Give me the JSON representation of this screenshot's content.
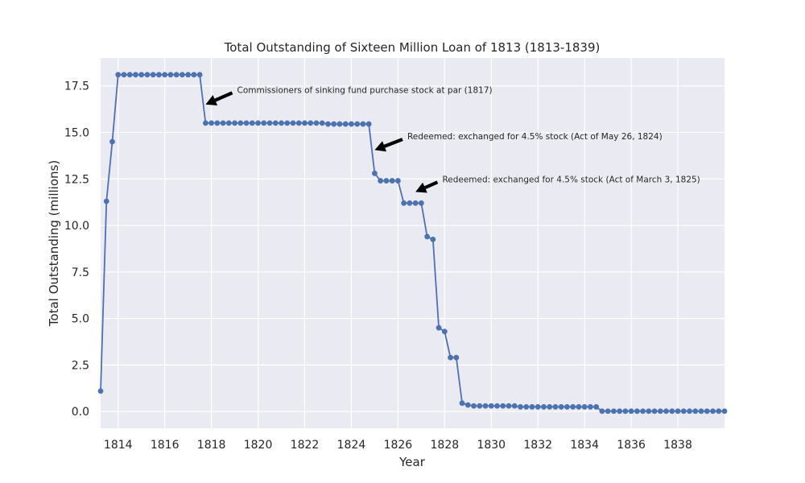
{
  "chart_data": {
    "type": "line",
    "title": "Total Outstanding of Sixteen Million Loan of 1813 (1813-1839)",
    "xlabel": "Year",
    "ylabel": "Total Outstanding (millions)",
    "xlim": [
      1813.25,
      1840.0
    ],
    "ylim": [
      -0.9,
      19.0
    ],
    "x_ticks": [
      1814,
      1816,
      1818,
      1820,
      1822,
      1824,
      1826,
      1828,
      1830,
      1832,
      1834,
      1836,
      1838
    ],
    "y_ticks": [
      0.0,
      2.5,
      5.0,
      7.5,
      10.0,
      12.5,
      15.0,
      17.5
    ],
    "grid": true,
    "colors": {
      "line": "#4c72b0",
      "background": "#eaeaf2",
      "grid": "#ffffff",
      "arrow": "#000000"
    },
    "series": [
      {
        "values": [
          [
            1813.25,
            1.1
          ],
          [
            1813.5,
            11.3
          ],
          [
            1813.75,
            14.5
          ],
          [
            1814.0,
            18.1
          ],
          [
            1814.25,
            18.1
          ],
          [
            1814.5,
            18.1
          ],
          [
            1814.75,
            18.1
          ],
          [
            1815.0,
            18.1
          ],
          [
            1815.25,
            18.1
          ],
          [
            1815.5,
            18.1
          ],
          [
            1815.75,
            18.1
          ],
          [
            1816.0,
            18.1
          ],
          [
            1816.25,
            18.1
          ],
          [
            1816.5,
            18.1
          ],
          [
            1816.75,
            18.1
          ],
          [
            1817.0,
            18.1
          ],
          [
            1817.25,
            18.1
          ],
          [
            1817.5,
            18.1
          ],
          [
            1817.75,
            15.5
          ],
          [
            1818.0,
            15.5
          ],
          [
            1818.25,
            15.5
          ],
          [
            1818.5,
            15.5
          ],
          [
            1818.75,
            15.5
          ],
          [
            1819.0,
            15.5
          ],
          [
            1819.25,
            15.5
          ],
          [
            1819.5,
            15.5
          ],
          [
            1819.75,
            15.5
          ],
          [
            1820.0,
            15.5
          ],
          [
            1820.25,
            15.5
          ],
          [
            1820.5,
            15.5
          ],
          [
            1820.75,
            15.5
          ],
          [
            1821.0,
            15.5
          ],
          [
            1821.25,
            15.5
          ],
          [
            1821.5,
            15.5
          ],
          [
            1821.75,
            15.5
          ],
          [
            1822.0,
            15.5
          ],
          [
            1822.25,
            15.5
          ],
          [
            1822.5,
            15.5
          ],
          [
            1822.75,
            15.5
          ],
          [
            1823.0,
            15.45
          ],
          [
            1823.25,
            15.45
          ],
          [
            1823.5,
            15.45
          ],
          [
            1823.75,
            15.45
          ],
          [
            1824.0,
            15.45
          ],
          [
            1824.25,
            15.45
          ],
          [
            1824.5,
            15.45
          ],
          [
            1824.75,
            15.45
          ],
          [
            1825.0,
            12.8
          ],
          [
            1825.25,
            12.4
          ],
          [
            1825.5,
            12.4
          ],
          [
            1825.75,
            12.4
          ],
          [
            1826.0,
            12.4
          ],
          [
            1826.25,
            11.2
          ],
          [
            1826.5,
            11.2
          ],
          [
            1826.75,
            11.2
          ],
          [
            1827.0,
            11.2
          ],
          [
            1827.25,
            9.4
          ],
          [
            1827.5,
            9.25
          ],
          [
            1827.75,
            4.5
          ],
          [
            1828.0,
            4.3
          ],
          [
            1828.25,
            2.9
          ],
          [
            1828.5,
            2.9
          ],
          [
            1828.75,
            0.45
          ],
          [
            1829.0,
            0.35
          ],
          [
            1829.25,
            0.3
          ],
          [
            1829.5,
            0.3
          ],
          [
            1829.75,
            0.3
          ],
          [
            1830.0,
            0.3
          ],
          [
            1830.25,
            0.3
          ],
          [
            1830.5,
            0.3
          ],
          [
            1830.75,
            0.3
          ],
          [
            1831.0,
            0.3
          ],
          [
            1831.25,
            0.25
          ],
          [
            1831.5,
            0.25
          ],
          [
            1831.75,
            0.25
          ],
          [
            1832.0,
            0.25
          ],
          [
            1832.25,
            0.25
          ],
          [
            1832.5,
            0.25
          ],
          [
            1832.75,
            0.25
          ],
          [
            1833.0,
            0.25
          ],
          [
            1833.25,
            0.25
          ],
          [
            1833.5,
            0.25
          ],
          [
            1833.75,
            0.25
          ],
          [
            1834.0,
            0.25
          ],
          [
            1834.25,
            0.25
          ],
          [
            1834.5,
            0.25
          ],
          [
            1834.75,
            0.02
          ],
          [
            1835.0,
            0.02
          ],
          [
            1835.25,
            0.02
          ],
          [
            1835.5,
            0.02
          ],
          [
            1835.75,
            0.02
          ],
          [
            1836.0,
            0.02
          ],
          [
            1836.25,
            0.02
          ],
          [
            1836.5,
            0.02
          ],
          [
            1836.75,
            0.02
          ],
          [
            1837.0,
            0.02
          ],
          [
            1837.25,
            0.02
          ],
          [
            1837.5,
            0.02
          ],
          [
            1837.75,
            0.02
          ],
          [
            1838.0,
            0.02
          ],
          [
            1838.25,
            0.02
          ],
          [
            1838.5,
            0.02
          ],
          [
            1838.75,
            0.02
          ],
          [
            1839.0,
            0.02
          ],
          [
            1839.25,
            0.02
          ],
          [
            1839.5,
            0.02
          ],
          [
            1839.75,
            0.02
          ],
          [
            1840.0,
            0.02
          ]
        ]
      }
    ],
    "annotations": [
      {
        "text": "Commissioners of sinking fund purchase stock at par (1817)",
        "point": [
          1817.75,
          16.5
        ],
        "text_at": [
          1819.1,
          17.3
        ]
      },
      {
        "text": "Redeemed: exchanged for 4.5% stock (Act of May 26, 1824)",
        "point": [
          1825.0,
          14.05
        ],
        "text_at": [
          1826.4,
          14.8
        ]
      },
      {
        "text": "Redeemed: exchanged for 4.5% stock (Act of March 3, 1825)",
        "point": [
          1826.75,
          11.8
        ],
        "text_at": [
          1827.9,
          12.5
        ]
      }
    ]
  }
}
